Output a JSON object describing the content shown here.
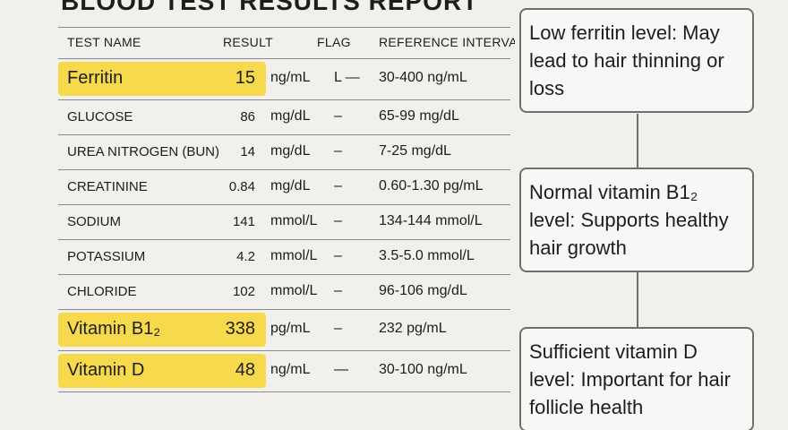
{
  "header": {
    "title": "BLOOD TEST RESULTS REPORT"
  },
  "table": {
    "columns": [
      "TEST NAME",
      "RESULT",
      "FLAG",
      "REFERENCE INTERVAL"
    ],
    "rows": [
      {
        "name": "Ferritin",
        "result": "15",
        "unit": "ng/mL",
        "flag": "L —",
        "reference": "30-400 ng/mL",
        "highlight": true
      },
      {
        "name": "GLUCOSE",
        "result": "86",
        "unit": "mg/dL",
        "flag": "–",
        "reference": "65-99 mg/dL",
        "highlight": false
      },
      {
        "name": "UREA NITROGEN (BUN)",
        "result": "14",
        "unit": "mg/dL",
        "flag": "–",
        "reference": "7-25 mg/dL",
        "highlight": false
      },
      {
        "name": "CREATININE",
        "result": "0.84",
        "unit": "mg/dL",
        "flag": "–",
        "reference": "0.60-1.30 pg/mL",
        "highlight": false
      },
      {
        "name": "SODIUM",
        "result": "141",
        "unit": "mmol/L",
        "flag": "–",
        "reference": "134-144 mmol/L",
        "highlight": false
      },
      {
        "name": "POTASSIUM",
        "result": "4.2",
        "unit": "mmol/L",
        "flag": "–",
        "reference": "3.5-5.0 mmol/L",
        "highlight": false
      },
      {
        "name": "CHLORIDE",
        "result": "102",
        "unit": "mmol/L",
        "flag": "–",
        "reference": "96-106 mg/dL",
        "highlight": false
      },
      {
        "name": "Vitamin B1₂",
        "result": "338",
        "unit": "pg/mL",
        "flag": "–",
        "reference": "232 pg/mL",
        "highlight": true
      },
      {
        "name": "Vitamin D",
        "result": "48",
        "unit": "ng/mL",
        "flag": "—",
        "reference": "30-100 ng/mL",
        "highlight": true
      }
    ]
  },
  "callouts": [
    "Low ferritin level: May lead to hair thinning or loss",
    "Normal vitamin B1₂ level: Supports healthy hair growth",
    "Sufficient vitamin D level: Important for hair follicle health"
  ]
}
